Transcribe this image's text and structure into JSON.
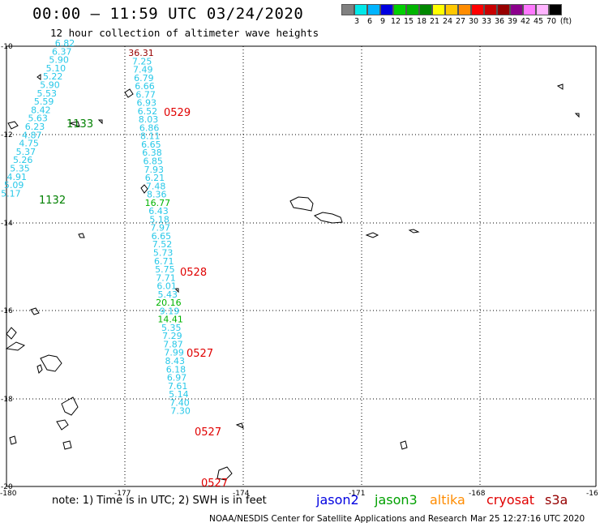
{
  "header": {
    "title": "00:00 – 11:59 UTC 03/24/2020",
    "subtitle": "12 hour collection of altimeter wave heights"
  },
  "color_scale": {
    "labels": [
      "3",
      "6",
      "9",
      "12",
      "15",
      "18",
      "21",
      "24",
      "27",
      "30",
      "33",
      "36",
      "39",
      "42",
      "45",
      "70"
    ],
    "unit": "(ft)",
    "colors": [
      "#808080",
      "#00e8e8",
      "#00b4ff",
      "#0000e0",
      "#00d000",
      "#00b400",
      "#008800",
      "#ffff00",
      "#ffc800",
      "#ff8c00",
      "#ff0000",
      "#c80000",
      "#960000",
      "#8c008c",
      "#ff78ff",
      "#ffb4ff",
      "#000000"
    ]
  },
  "map": {
    "lon_labels": [
      "-180",
      "-177",
      "-174",
      "-171",
      "-168",
      "-16"
    ],
    "lat_labels": [
      "-10",
      "-12",
      "-14",
      "-16",
      "-18",
      "-20"
    ],
    "colors": {
      "wave_cyan": "#28c8e8",
      "wave_green": "#00b400",
      "wave_dkred": "#960000",
      "pass_red": "#e00000",
      "pass_green": "#008000"
    },
    "track_west": [
      "6.82",
      "6.37",
      "5.90",
      "5.10",
      "5.22",
      "5.90",
      "5.53",
      "5.59",
      "8.42",
      "5.63",
      "6.23",
      "4.87",
      "4.75",
      "5.37",
      "5.26",
      "5.35",
      "4.91",
      "5.09",
      "5.17"
    ],
    "track_east": [
      "36.31",
      "7.25",
      "7.49",
      "6.79",
      "6.66",
      "6.77",
      "6.93",
      "6.52",
      "8.03",
      "6.86",
      "8.11",
      "6.65",
      "6.38",
      "6.85",
      "7.93",
      "6.21",
      "7.48",
      "8.36",
      "16.77",
      "6.43",
      "5.18",
      "7.97",
      "6.65",
      "7.52",
      "5.73",
      "6.71",
      "5.75",
      "7.71",
      "6.01",
      "5.43",
      "20.16",
      "9.19",
      "14.41",
      "5.35",
      "7.29",
      "7.87",
      "7.99",
      "8.43",
      "6.18",
      "6.97",
      "7.61",
      "5.14",
      "7.40",
      "7.30"
    ],
    "pass_times": [
      "1133",
      "1132",
      "0529",
      "0528",
      "0527",
      "0527",
      "0527"
    ]
  },
  "footer": {
    "note": "note:  1) Time is in UTC;  2) SWH is in feet",
    "legend": [
      {
        "name": "jason2",
        "color": "#0000e0"
      },
      {
        "name": "jason3",
        "color": "#00a000"
      },
      {
        "name": "altika",
        "color": "#ff8c00"
      },
      {
        "name": "cryosat",
        "color": "#e00000"
      },
      {
        "name": "s3a",
        "color": "#960000"
      }
    ],
    "credit": "NOAA/NESDIS Center for Satellite Applications and Research",
    "timestamp": "Mar 25 12:27:16 UTC 2020"
  }
}
